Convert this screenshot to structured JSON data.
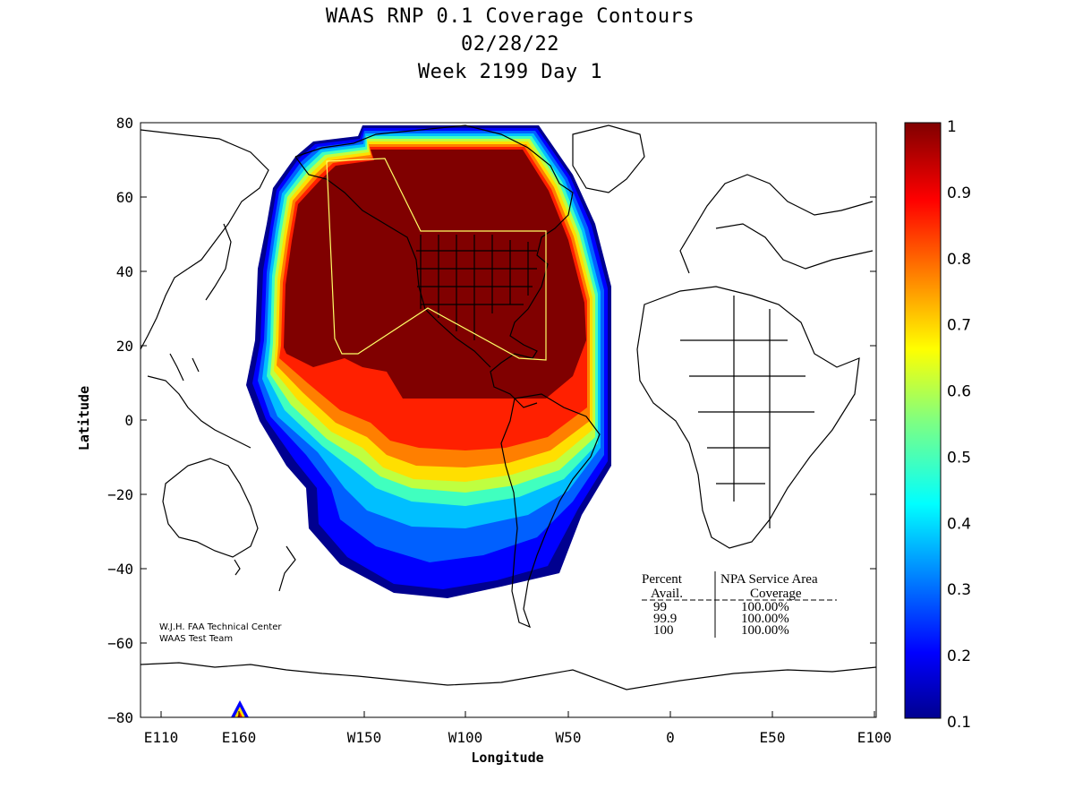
{
  "chart_data": {
    "type": "heatmap",
    "title_lines": [
      "WAAS RNP 0.1 Coverage Contours",
      "02/28/22",
      "Week 2199 Day 1"
    ],
    "xlabel": "Longitude",
    "ylabel": "Latitude",
    "x_ticks": [
      "E110",
      "E160",
      "W150",
      "W100",
      "W50",
      "0",
      "E50",
      "E100"
    ],
    "y_ticks": [
      "80",
      "60",
      "40",
      "20",
      "0",
      "−20",
      "−40",
      "−60",
      "−80"
    ],
    "colorbar": {
      "range": [
        0.1,
        1.0
      ],
      "ticks": [
        "1",
        "0.9",
        "0.8",
        "0.7",
        "0.6",
        "0.5",
        "0.4",
        "0.3",
        "0.2",
        "0.1"
      ],
      "colormap": "jet"
    },
    "coverage_levels": [
      1.0,
      0.9,
      0.8,
      0.7,
      0.6,
      0.5,
      0.4,
      0.3,
      0.2,
      0.1
    ],
    "service_area": "NPA Service Area",
    "legend_table": {
      "header_left": "Percent",
      "header_right": "NPA Service Area",
      "subheader_left": "Avail.",
      "subheader_right": "Coverage",
      "rows": [
        {
          "avail": "99",
          "coverage": "100.00%"
        },
        {
          "avail": "99.9",
          "coverage": "100.00%"
        },
        {
          "avail": "100",
          "coverage": "100.00%"
        }
      ]
    },
    "credit": [
      "W.J.H. FAA Technical Center",
      "WAAS Test Team"
    ]
  },
  "colors": {
    "level_1": "#800000",
    "level_09": "#ff2000",
    "level_08": "#ff7f00",
    "level_07": "#ffdf00",
    "level_06": "#bfff40",
    "level_05": "#40ffbf",
    "level_04": "#00bfff",
    "level_03": "#0060ff",
    "level_02": "#0000ff",
    "level_01": "#00008f",
    "service_boundary": "#ffff66",
    "coastline": "#000000"
  }
}
